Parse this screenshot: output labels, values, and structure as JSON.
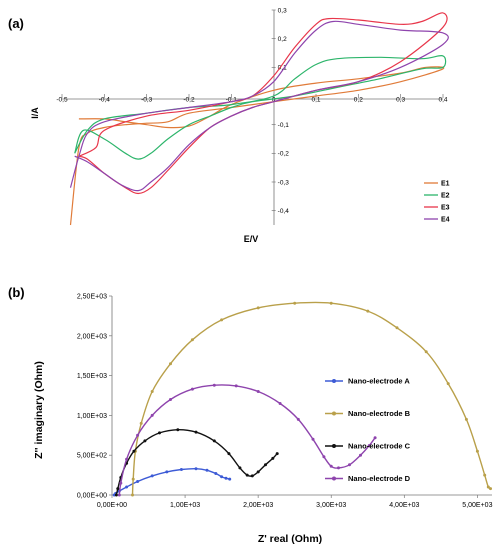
{
  "chart_data": [
    {
      "panel_label": "(a)",
      "type": "line",
      "xlabel": "E/V",
      "ylabel": "I/A",
      "xlim": [
        -0.5,
        0.4
      ],
      "ylim": [
        -0.45,
        0.3
      ],
      "x_ticks": [
        -0.5,
        -0.4,
        -0.3,
        -0.2,
        -0.1,
        0,
        0.1,
        0.2,
        0.3,
        0.4
      ],
      "x_tick_labels": [
        "-0,5",
        "-0,4",
        "-0,3",
        "-0,2",
        "-0,1",
        "0",
        "0,1",
        "0,2",
        "0,3",
        "0,4"
      ],
      "y_ticks": [
        0.3,
        0.2,
        0.1,
        0,
        -0.1,
        -0.2,
        -0.3,
        -0.4
      ],
      "y_tick_labels": [
        "0,3",
        "0,2",
        "0,1",
        "0",
        "-0,1",
        "-0,2",
        "-0,3",
        "-0,4"
      ],
      "grid": false,
      "legend_position": "right",
      "series": [
        {
          "name": "E1",
          "color": "#e07b39",
          "points": [
            [
              -0.48,
              -0.45
            ],
            [
              -0.46,
              -0.18
            ],
            [
              -0.44,
              -0.13
            ],
            [
              -0.4,
              -0.11
            ],
            [
              -0.35,
              -0.1
            ],
            [
              -0.3,
              -0.095
            ],
            [
              -0.25,
              -0.09
            ],
            [
              -0.2,
              -0.06
            ],
            [
              -0.1,
              -0.04
            ],
            [
              0.0,
              -0.02
            ],
            [
              0.1,
              0.0
            ],
            [
              0.2,
              0.02
            ],
            [
              0.3,
              0.05
            ],
            [
              0.4,
              0.095
            ],
            [
              0.36,
              0.1
            ],
            [
              0.3,
              0.08
            ],
            [
              0.2,
              0.06
            ],
            [
              0.1,
              0.045
            ],
            [
              0.0,
              0.02
            ],
            [
              -0.1,
              -0.03
            ],
            [
              -0.15,
              -0.07
            ],
            [
              -0.2,
              -0.105
            ],
            [
              -0.25,
              -0.11
            ],
            [
              -0.3,
              -0.1
            ],
            [
              -0.35,
              -0.09
            ],
            [
              -0.4,
              -0.08
            ],
            [
              -0.46,
              -0.08
            ]
          ]
        },
        {
          "name": "E2",
          "color": "#2db56b",
          "points": [
            [
              -0.47,
              -0.2
            ],
            [
              -0.44,
              -0.12
            ],
            [
              -0.4,
              -0.08
            ],
            [
              -0.3,
              -0.06
            ],
            [
              -0.2,
              -0.04
            ],
            [
              -0.1,
              -0.03
            ],
            [
              0.0,
              0.0
            ],
            [
              0.05,
              0.06
            ],
            [
              0.1,
              0.11
            ],
            [
              0.15,
              0.13
            ],
            [
              0.25,
              0.135
            ],
            [
              0.35,
              0.13
            ],
            [
              0.4,
              0.14
            ],
            [
              0.4,
              0.1
            ],
            [
              0.35,
              0.095
            ],
            [
              0.25,
              0.06
            ],
            [
              0.15,
              0.03
            ],
            [
              0.05,
              0.0
            ],
            [
              -0.05,
              -0.02
            ],
            [
              -0.1,
              -0.04
            ],
            [
              -0.15,
              -0.07
            ],
            [
              -0.2,
              -0.1
            ],
            [
              -0.25,
              -0.15
            ],
            [
              -0.29,
              -0.2
            ],
            [
              -0.32,
              -0.22
            ],
            [
              -0.35,
              -0.2
            ],
            [
              -0.4,
              -0.15
            ],
            [
              -0.45,
              -0.12
            ],
            [
              -0.47,
              -0.2
            ]
          ]
        },
        {
          "name": "E3",
          "color": "#e8364a",
          "points": [
            [
              -0.46,
              -0.21
            ],
            [
              -0.42,
              -0.18
            ],
            [
              -0.4,
              -0.12
            ],
            [
              -0.3,
              -0.07
            ],
            [
              -0.2,
              -0.05
            ],
            [
              -0.1,
              -0.02
            ],
            [
              -0.05,
              0.0
            ],
            [
              0.0,
              0.07
            ],
            [
              0.05,
              0.17
            ],
            [
              0.1,
              0.25
            ],
            [
              0.13,
              0.27
            ],
            [
              0.2,
              0.265
            ],
            [
              0.3,
              0.25
            ],
            [
              0.35,
              0.26
            ],
            [
              0.4,
              0.29
            ],
            [
              0.4,
              0.24
            ],
            [
              0.3,
              0.12
            ],
            [
              0.2,
              0.05
            ],
            [
              0.1,
              0.02
            ],
            [
              0.0,
              -0.02
            ],
            [
              -0.05,
              -0.04
            ],
            [
              -0.1,
              -0.07
            ],
            [
              -0.15,
              -0.11
            ],
            [
              -0.2,
              -0.18
            ],
            [
              -0.25,
              -0.26
            ],
            [
              -0.29,
              -0.32
            ],
            [
              -0.32,
              -0.34
            ],
            [
              -0.35,
              -0.32
            ],
            [
              -0.4,
              -0.27
            ],
            [
              -0.44,
              -0.22
            ],
            [
              -0.46,
              -0.21
            ]
          ]
        },
        {
          "name": "E4",
          "color": "#8e44ad",
          "points": [
            [
              -0.48,
              -0.32
            ],
            [
              -0.46,
              -0.21
            ],
            [
              -0.44,
              -0.13
            ],
            [
              -0.4,
              -0.09
            ],
            [
              -0.3,
              -0.06
            ],
            [
              -0.2,
              -0.04
            ],
            [
              -0.1,
              -0.02
            ],
            [
              -0.05,
              0.0
            ],
            [
              0.0,
              0.05
            ],
            [
              0.05,
              0.15
            ],
            [
              0.1,
              0.23
            ],
            [
              0.14,
              0.26
            ],
            [
              0.2,
              0.25
            ],
            [
              0.3,
              0.23
            ],
            [
              0.4,
              0.22
            ],
            [
              0.4,
              0.18
            ],
            [
              0.3,
              0.1
            ],
            [
              0.2,
              0.05
            ],
            [
              0.1,
              0.02
            ],
            [
              0.0,
              -0.02
            ],
            [
              -0.05,
              -0.04
            ],
            [
              -0.1,
              -0.07
            ],
            [
              -0.15,
              -0.11
            ],
            [
              -0.2,
              -0.17
            ],
            [
              -0.25,
              -0.25
            ],
            [
              -0.29,
              -0.3
            ],
            [
              -0.32,
              -0.33
            ],
            [
              -0.36,
              -0.31
            ],
            [
              -0.4,
              -0.27
            ],
            [
              -0.44,
              -0.23
            ],
            [
              -0.47,
              -0.21
            ]
          ]
        }
      ]
    },
    {
      "panel_label": "(b)",
      "type": "line",
      "xlabel": "Z' real (Ohm)",
      "ylabel": "Z'' imaginary (Ohm)",
      "xlim": [
        0,
        5200
      ],
      "ylim": [
        0,
        2500
      ],
      "x_ticks": [
        0,
        1000,
        2000,
        3000,
        4000,
        5000
      ],
      "x_tick_labels": [
        "0,00E+00",
        "1,00E+03",
        "2,00E+03",
        "3,00E+03",
        "4,00E+03",
        "5,00E+03"
      ],
      "y_ticks": [
        0,
        500,
        1000,
        1500,
        2000,
        2500
      ],
      "y_tick_labels": [
        "0,00E+00",
        "5,00E+02",
        "1,00E+03",
        "1,50E+03",
        "2,00E+03",
        "2,50E+03"
      ],
      "grid": false,
      "legend_position": "right",
      "series": [
        {
          "name": "Nano-electrode A",
          "color": "#3d5bd6",
          "points": [
            [
              30,
              0
            ],
            [
              50,
              20
            ],
            [
              100,
              50
            ],
            [
              200,
              100
            ],
            [
              350,
              170
            ],
            [
              550,
              240
            ],
            [
              750,
              290
            ],
            [
              950,
              320
            ],
            [
              1150,
              330
            ],
            [
              1300,
              310
            ],
            [
              1420,
              270
            ],
            [
              1500,
              230
            ],
            [
              1560,
              210
            ],
            [
              1610,
              200
            ]
          ]
        },
        {
          "name": "Nano-electrode B",
          "color": "#b9a04a",
          "points": [
            [
              280,
              0
            ],
            [
              290,
              200
            ],
            [
              320,
              550
            ],
            [
              400,
              900
            ],
            [
              550,
              1300
            ],
            [
              800,
              1650
            ],
            [
              1100,
              1950
            ],
            [
              1500,
              2200
            ],
            [
              2000,
              2350
            ],
            [
              2500,
              2410
            ],
            [
              3000,
              2410
            ],
            [
              3500,
              2310
            ],
            [
              3900,
              2100
            ],
            [
              4300,
              1800
            ],
            [
              4600,
              1400
            ],
            [
              4850,
              950
            ],
            [
              5000,
              550
            ],
            [
              5100,
              250
            ],
            [
              5150,
              100
            ],
            [
              5180,
              80
            ]
          ]
        },
        {
          "name": "Nano-electrode C",
          "color": "#111111",
          "points": [
            [
              60,
              0
            ],
            [
              80,
              80
            ],
            [
              120,
              220
            ],
            [
              200,
              400
            ],
            [
              300,
              550
            ],
            [
              450,
              680
            ],
            [
              650,
              780
            ],
            [
              900,
              820
            ],
            [
              1150,
              790
            ],
            [
              1400,
              680
            ],
            [
              1600,
              520
            ],
            [
              1750,
              340
            ],
            [
              1850,
              250
            ],
            [
              1920,
              240
            ],
            [
              2000,
              290
            ],
            [
              2100,
              380
            ],
            [
              2200,
              460
            ],
            [
              2260,
              520
            ]
          ]
        },
        {
          "name": "Nano-electrode D",
          "color": "#8e44ad",
          "points": [
            [
              100,
              0
            ],
            [
              120,
              150
            ],
            [
              200,
              450
            ],
            [
              350,
              750
            ],
            [
              550,
              1000
            ],
            [
              800,
              1200
            ],
            [
              1100,
              1330
            ],
            [
              1400,
              1380
            ],
            [
              1700,
              1370
            ],
            [
              2000,
              1300
            ],
            [
              2300,
              1150
            ],
            [
              2550,
              950
            ],
            [
              2750,
              700
            ],
            [
              2900,
              480
            ],
            [
              3000,
              360
            ],
            [
              3100,
              340
            ],
            [
              3250,
              380
            ],
            [
              3400,
              500
            ],
            [
              3520,
              620
            ],
            [
              3600,
              720
            ]
          ]
        }
      ]
    }
  ]
}
